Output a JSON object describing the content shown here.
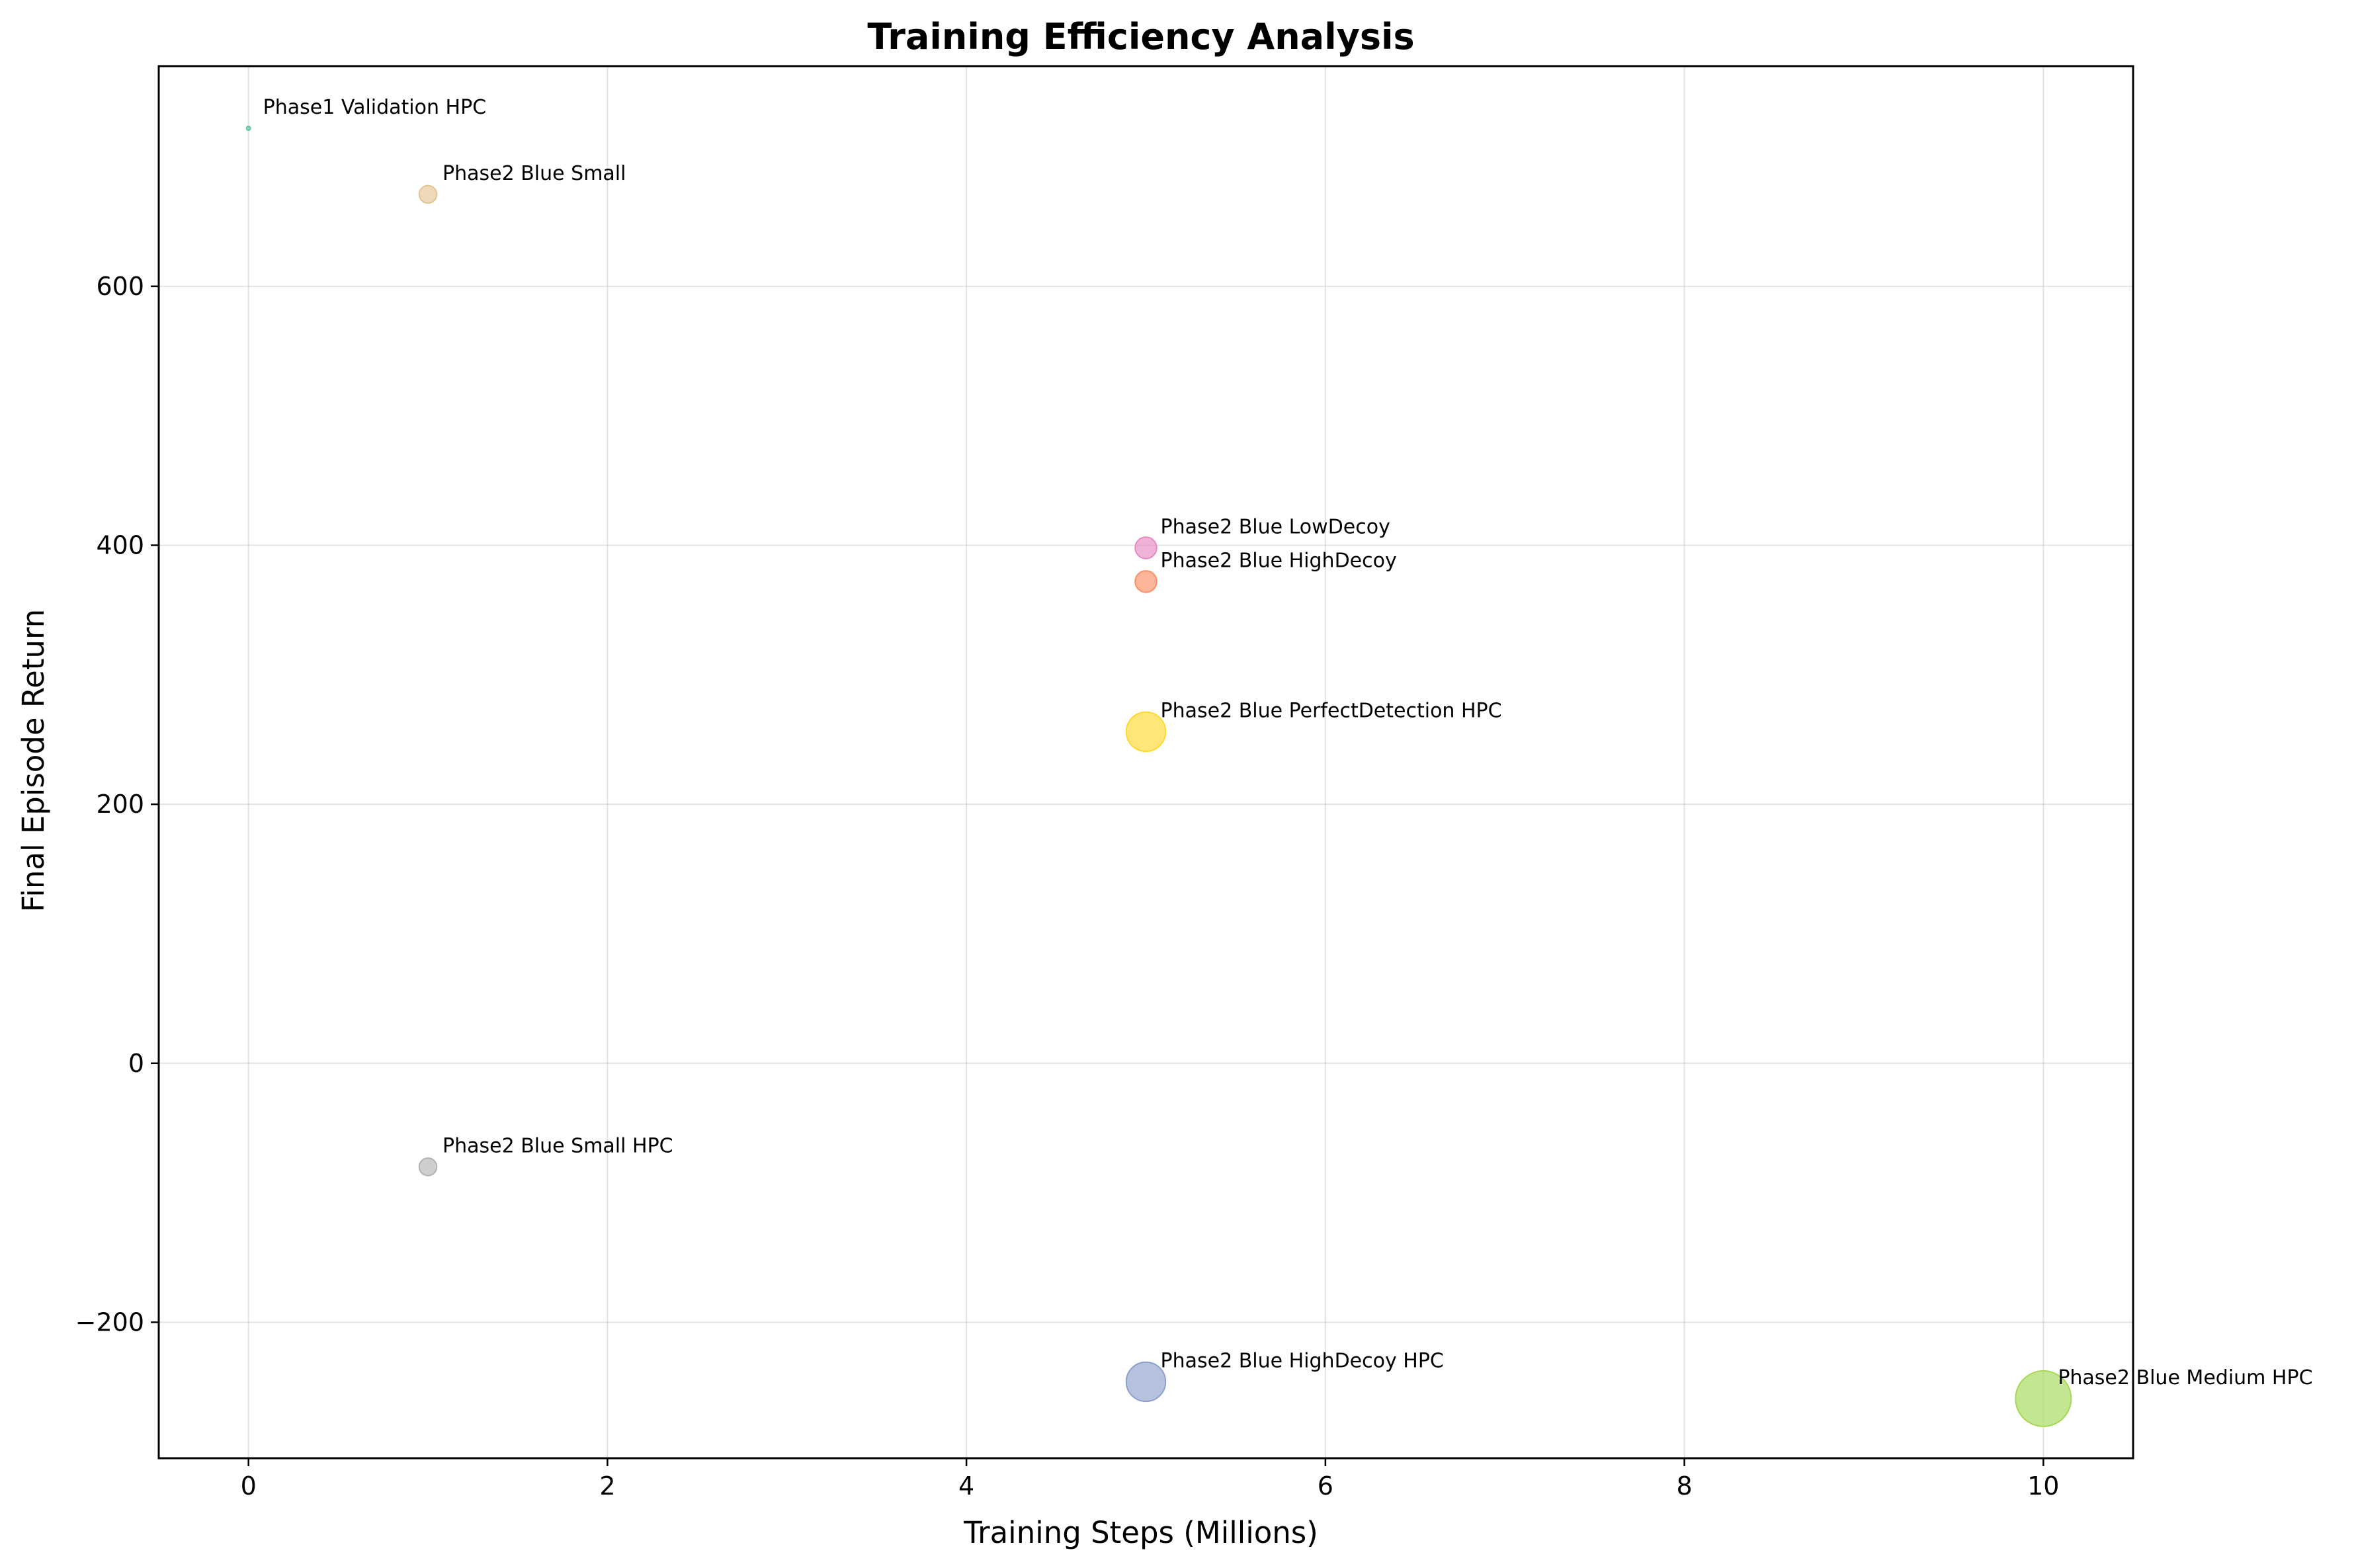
{
  "chart_data": {
    "type": "scatter",
    "title": "Training Efficiency Analysis",
    "xlabel": "Training Steps (Millions)",
    "ylabel": "Final Episode Return",
    "xlim": [
      -0.5,
      10.5
    ],
    "ylim": [
      -305,
      770
    ],
    "xticks": [
      0,
      2,
      4,
      6,
      8,
      10
    ],
    "yticks": [
      -200,
      0,
      200,
      400,
      600
    ],
    "xtick_labels": [
      "0",
      "2",
      "4",
      "6",
      "8",
      "10"
    ],
    "ytick_labels": [
      "−200",
      "0",
      "200",
      "400",
      "600"
    ],
    "grid": true,
    "bubble_size_unit": "training steps",
    "points": [
      {
        "label": "Phase1 Validation HPC",
        "x": 0.0,
        "y": 722,
        "size": 0.02,
        "color": "#66c2a5"
      },
      {
        "label": "Phase2 Blue Small",
        "x": 1.0,
        "y": 671,
        "size": 1.0,
        "color": "#e5c494"
      },
      {
        "label": "Phase2 Blue LowDecoy",
        "x": 5.0,
        "y": 398,
        "size": 1.5,
        "color": "#e78ac3"
      },
      {
        "label": "Phase2 Blue HighDecoy",
        "x": 5.0,
        "y": 372,
        "size": 1.5,
        "color": "#fc8d62"
      },
      {
        "label": "Phase2 Blue PerfectDetection HPC",
        "x": 5.0,
        "y": 256,
        "size": 5.0,
        "color": "#ffd92f"
      },
      {
        "label": "Phase2 Blue Small HPC",
        "x": 1.0,
        "y": -80,
        "size": 1.0,
        "color": "#b3b3b3"
      },
      {
        "label": "Phase2 Blue HighDecoy HPC",
        "x": 5.0,
        "y": -246,
        "size": 5.0,
        "color": "#8da0cb"
      },
      {
        "label": "Phase2 Blue Medium HPC",
        "x": 10.0,
        "y": -259,
        "size": 10.0,
        "color": "#a6d854"
      }
    ]
  }
}
